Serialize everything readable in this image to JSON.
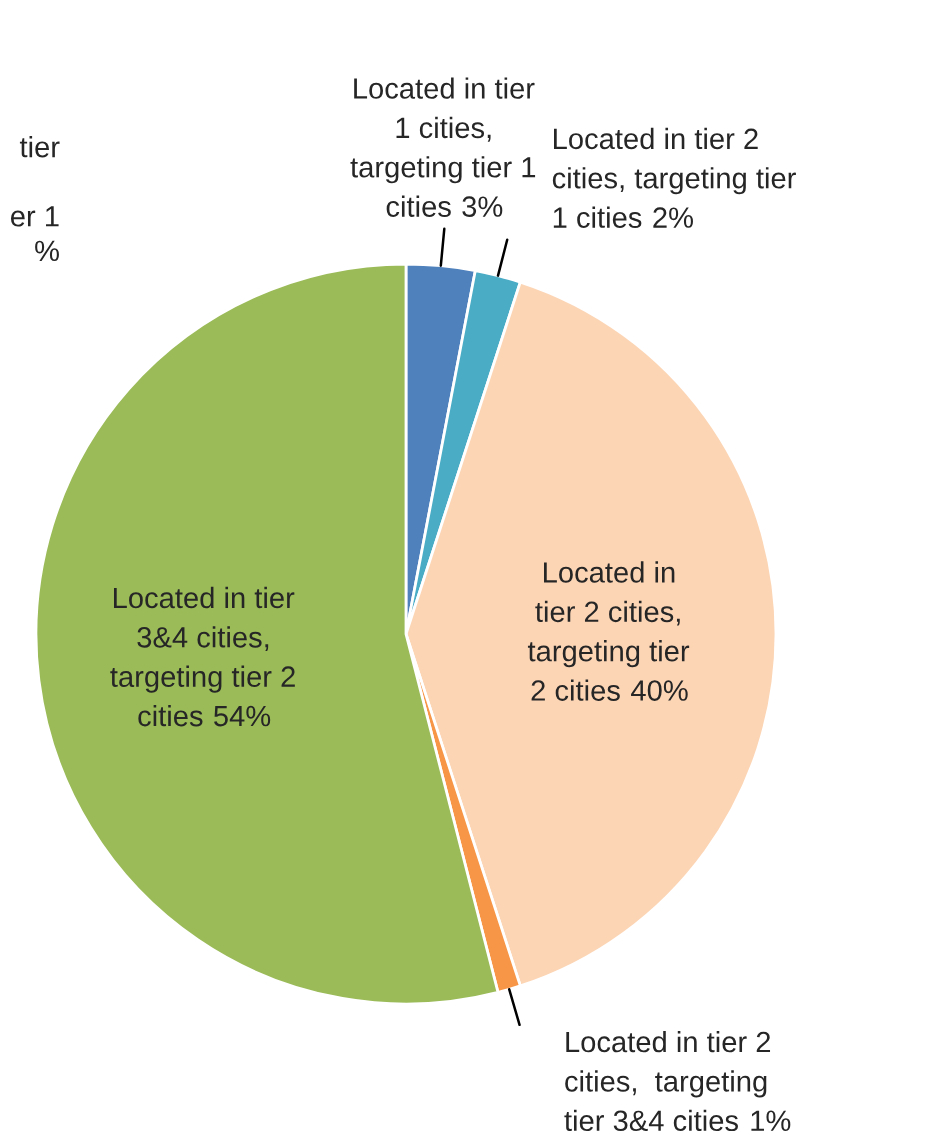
{
  "chart_data": {
    "type": "pie",
    "categories": [
      "Located in tier\n1 cities,\ntargeting tier 1\ncities",
      "Located in tier 2\ncities, targeting tier\n1 cities",
      "Located in\ntier 2 cities,\ntargeting tier\n2 cities",
      "Located in tier 2\ncities,  targeting\ntier 3&4 cities",
      "Located in tier\n3&4 cities,\ntargeting tier 2\ncities"
    ],
    "values": [
      3,
      2,
      40,
      1,
      54
    ],
    "colors": [
      "#4f81bd",
      "#4bacc6",
      "#fcd5b5",
      "#f79646",
      "#9bbb59"
    ],
    "value_labels": [
      "3%",
      "2%",
      "40%",
      "1%",
      "54%"
    ],
    "annotations": [
      "tier\n\ner 1\n%"
    ]
  }
}
